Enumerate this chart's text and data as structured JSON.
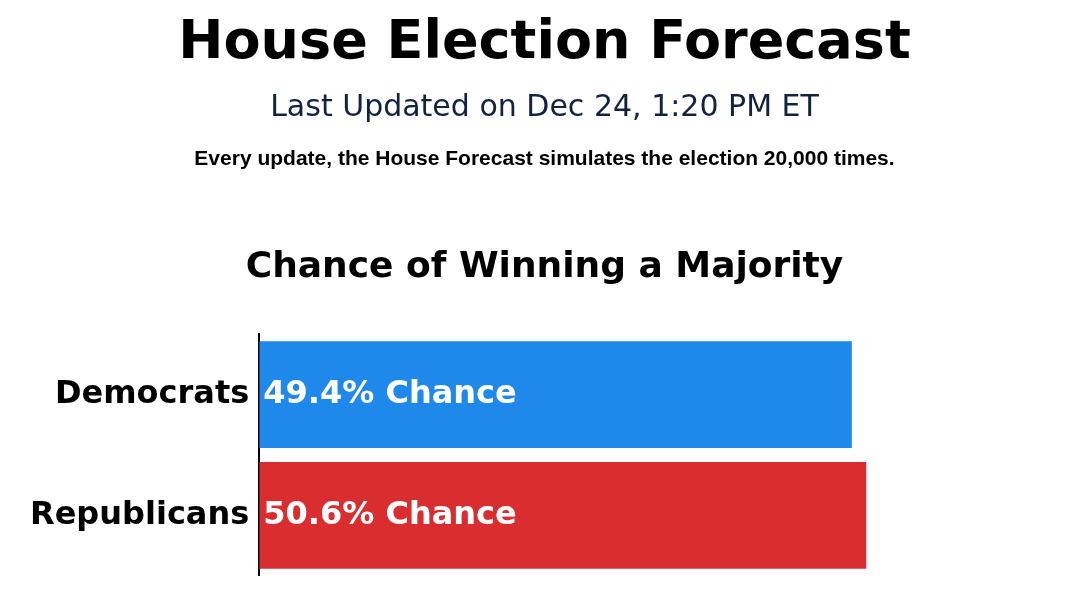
{
  "chart_data": {
    "type": "bar",
    "orientation": "horizontal",
    "title": "House Election Forecast",
    "subtitle": "Last Updated on Dec 24, 1:20 PM ET",
    "annotations": [
      "Every update, the House Forecast simulates the election 20,000 times.",
      "Chance of Winning a Majority"
    ],
    "categories": [
      "Democrats",
      "Republicans"
    ],
    "values": [
      49.4,
      50.6
    ],
    "colors": [
      "#1e88eb",
      "#d92d30"
    ],
    "value_labels": [
      "49.4% Chance",
      "50.6% Chance"
    ],
    "tick_labels": "y",
    "grid": false,
    "legend": false
  }
}
